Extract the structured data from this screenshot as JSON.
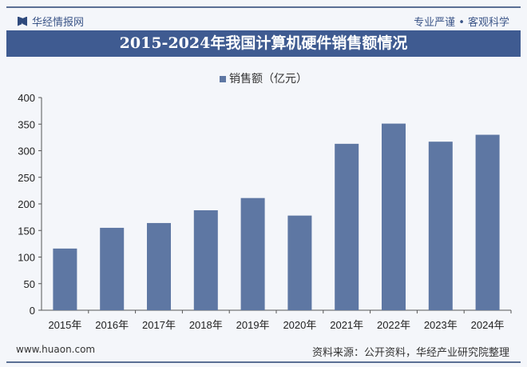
{
  "header": {
    "brand": "华经情报网",
    "slogan": "专业严谨 • 客观科学",
    "title": "2015-2024年我国计算机硬件销售额情况"
  },
  "footer": {
    "website": "www.huaon.com",
    "source": "资料来源：公开资料，华经产业研究院整理"
  },
  "chart_data": {
    "type": "bar",
    "title": "2015-2024年我国计算机硬件销售额情况",
    "categories": [
      "2015年",
      "2016年",
      "2017年",
      "2018年",
      "2019年",
      "2020年",
      "2021年",
      "2022年",
      "2023年",
      "2024年"
    ],
    "series": [
      {
        "name": "销售额（亿元）",
        "values": [
          116,
          155,
          164,
          188,
          211,
          178,
          313,
          351,
          317,
          330
        ],
        "color": "#5e77a3"
      }
    ],
    "ylim": [
      0,
      400
    ],
    "yticks": [
      0,
      50,
      100,
      150,
      200,
      250,
      300,
      350,
      400
    ],
    "legend": "top-center",
    "grid": false
  }
}
